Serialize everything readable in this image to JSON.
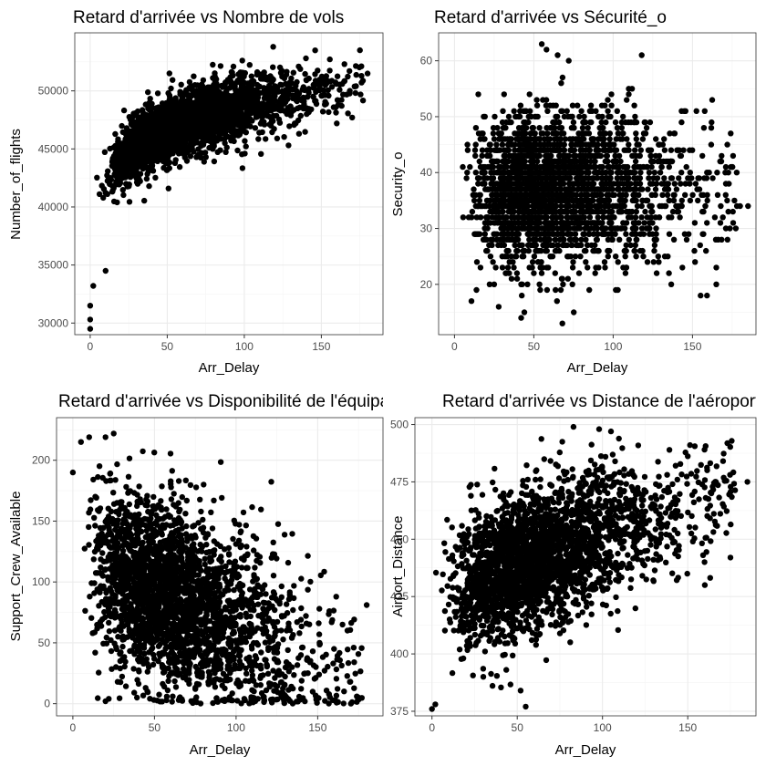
{
  "colors": {
    "point": "#000000",
    "panel_border": "#333333",
    "grid": "#ebebeb",
    "background": "#ffffff"
  },
  "chart_data": [
    {
      "type": "scatter",
      "title": "Retard d'arrivée vs Nombre de vols",
      "xlabel": "Arr_Delay",
      "ylabel": "Number_of_flights",
      "xlim": [
        -10,
        190
      ],
      "ylim": [
        29000,
        55000
      ],
      "xticks": [
        0,
        50,
        100,
        150
      ],
      "yticks": [
        30000,
        35000,
        40000,
        45000,
        50000
      ],
      "xtick_labels": [
        "0",
        "50",
        "100",
        "150"
      ],
      "ytick_labels": [
        "30000",
        "35000",
        "40000",
        "45000",
        "50000"
      ],
      "model": {
        "kind": "log",
        "a": 33500,
        "b": 3280,
        "c": 4,
        "sd": 1400
      },
      "seed": 11,
      "n": 2600,
      "points": [
        [
          0,
          29500
        ],
        [
          0,
          30300
        ],
        [
          0,
          31500
        ],
        [
          2,
          33200
        ],
        [
          10,
          34500
        ],
        [
          140,
          52800
        ],
        [
          175,
          53500
        ],
        [
          180,
          51500
        ],
        [
          170,
          47700
        ],
        [
          160,
          47200
        ]
      ]
    },
    {
      "type": "scatter",
      "title": "Retard d'arrivée vs Sécurité_o",
      "xlabel": "Arr_Delay",
      "ylabel": "Security_o",
      "xlim": [
        -10,
        190
      ],
      "ylim": [
        11,
        65
      ],
      "xticks": [
        0,
        50,
        100,
        150
      ],
      "yticks": [
        20,
        30,
        40,
        50,
        60
      ],
      "xtick_labels": [
        "0",
        "50",
        "100",
        "150"
      ],
      "ytick_labels": [
        "20",
        "30",
        "40",
        "50",
        "60"
      ],
      "model": {
        "kind": "flat",
        "a": 37,
        "sd": 6.5,
        "integer": true
      },
      "seed": 23,
      "n": 2600,
      "points": [
        [
          55,
          63
        ],
        [
          58,
          62
        ],
        [
          65,
          61
        ],
        [
          72,
          60
        ],
        [
          118,
          61
        ],
        [
          68,
          13
        ],
        [
          42,
          14
        ],
        [
          180,
          34
        ],
        [
          185,
          34
        ],
        [
          165,
          23
        ],
        [
          165,
          20
        ],
        [
          175,
          41
        ],
        [
          178,
          34
        ]
      ]
    },
    {
      "type": "scatter",
      "title": "Retard d'arrivée vs Disponibilité de l'équipage",
      "xlabel": "Arr_Delay",
      "ylabel": "Support_Crew_Available",
      "xlim": [
        -10,
        190
      ],
      "ylim": [
        -10,
        235
      ],
      "xticks": [
        0,
        50,
        100,
        150
      ],
      "yticks": [
        0,
        50,
        100,
        150,
        200
      ],
      "xtick_labels": [
        "0",
        "50",
        "100",
        "150"
      ],
      "ytick_labels": [
        "0",
        "50",
        "100",
        "150",
        "200"
      ],
      "model": {
        "kind": "linear",
        "a": 120,
        "b": -0.55,
        "sd": 38,
        "ymin": 0
      },
      "seed": 37,
      "n": 2600,
      "points": [
        [
          5,
          215
        ],
        [
          25,
          222
        ],
        [
          20,
          219
        ],
        [
          10,
          219
        ],
        [
          0,
          190
        ],
        [
          180,
          81
        ],
        [
          175,
          5
        ],
        [
          170,
          18
        ],
        [
          160,
          45
        ],
        [
          20,
          2
        ],
        [
          22,
          4
        ]
      ]
    },
    {
      "type": "scatter",
      "title": "Retard d'arrivée vs Distance de l'aéroport",
      "xlabel": "Arr_Delay",
      "ylabel": "Airport_Distance",
      "xlim": [
        -10,
        190
      ],
      "ylim": [
        373,
        503
      ],
      "xticks": [
        0,
        50,
        100,
        150
      ],
      "yticks": [
        375,
        400,
        425,
        450,
        475,
        500
      ],
      "xtick_labels": [
        "0",
        "50",
        "100",
        "150"
      ],
      "ytick_labels": [
        "375",
        "400",
        "425",
        "450",
        "475",
        "500"
      ],
      "model": {
        "kind": "linear",
        "a": 425,
        "b": 0.27,
        "sd": 15
      },
      "seed": 53,
      "n": 2600,
      "points": [
        [
          0,
          376
        ],
        [
          2,
          378
        ],
        [
          55,
          377
        ],
        [
          52,
          384
        ],
        [
          83,
          499
        ],
        [
          98,
          498
        ],
        [
          105,
          497
        ],
        [
          185,
          475
        ],
        [
          175,
          442
        ],
        [
          160,
          430
        ]
      ]
    }
  ]
}
